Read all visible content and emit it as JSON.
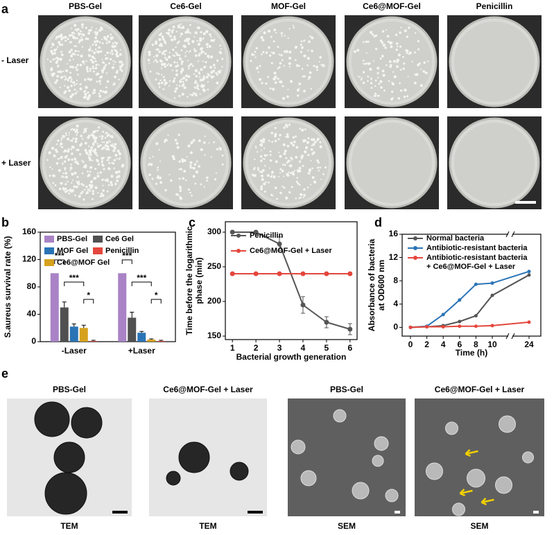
{
  "panel_labels": [
    "a",
    "b",
    "c",
    "d",
    "e"
  ],
  "plates": {
    "columns": [
      "PBS-Gel",
      "Ce6-Gel",
      "MOF-Gel",
      "Ce6@MOF-Gel",
      "Penicillin"
    ],
    "rows": [
      "- Laser",
      "+ Laser"
    ]
  },
  "chart_data": [
    {
      "type": "bar",
      "y_label": "S.aureus survival rate (%)",
      "categories": [
        "-Laser",
        "+Laser"
      ],
      "series": [
        {
          "name": "PBS-Gel",
          "color": "#a983c6",
          "values": [
            100,
            100
          ]
        },
        {
          "name": "Ce6 Gel",
          "color": "#505050",
          "values": [
            50,
            35
          ],
          "errors": [
            8,
            8
          ]
        },
        {
          "name": "MOF Gel",
          "color": "#2a74b6",
          "values": [
            22,
            13
          ],
          "errors": [
            4,
            2
          ]
        },
        {
          "name": "Ce6@MOF Gel",
          "color": "#d6a21e",
          "values": [
            20,
            3
          ],
          "errors": [
            4,
            1
          ]
        },
        {
          "name": "Penicillin",
          "color": "#e4463c",
          "values": [
            1,
            1
          ],
          "errors": [
            1,
            1
          ]
        }
      ],
      "ylim": [
        0,
        160
      ],
      "yticks": [
        0,
        40,
        80,
        120,
        160
      ],
      "significance": [
        "***",
        "***",
        "*",
        "***",
        "***",
        "*"
      ]
    },
    {
      "type": "line",
      "y_label": "Time before the logarithmic phase (min)",
      "x_label": "Bacterial growth generation",
      "x": [
        1,
        2,
        3,
        4,
        5,
        6
      ],
      "series": [
        {
          "name": "Penicillin",
          "color": "#555555",
          "values": [
            300,
            300,
            283,
            195,
            170,
            160
          ],
          "errors": [
            0,
            0,
            10,
            12,
            8,
            8
          ]
        },
        {
          "name": "Ce6@MOF-Gel + Laser",
          "color": "#e4463c",
          "values": [
            240,
            240,
            240,
            240,
            240,
            240
          ]
        }
      ],
      "xlim": [
        0.7,
        6.3
      ],
      "xticks": [
        1,
        2,
        3,
        4,
        5,
        6
      ],
      "ylim": [
        145,
        315
      ],
      "yticks": [
        150,
        200,
        250,
        300
      ]
    },
    {
      "type": "line",
      "y_label": "Absorbance of bacteria at OD600 nm",
      "x_label": "Time (h)",
      "axis_break": true,
      "x": [
        0,
        2,
        4,
        6,
        8,
        10,
        24
      ],
      "series": [
        {
          "name": "Normal bacteria",
          "color": "#555555",
          "values": [
            0,
            0.1,
            0.3,
            1,
            2,
            5.5,
            9
          ]
        },
        {
          "name": "Antibiotic-resistant bacteria",
          "color": "#2a74b6",
          "values": [
            0,
            0.2,
            2.2,
            4.7,
            7.4,
            7.6,
            9.6
          ]
        },
        {
          "name": "Antibiotic-resistant bacteria + Ce6@MOF-Gel + Laser",
          "color": "#e4463c",
          "values": [
            0,
            0.1,
            0.1,
            0.2,
            0.2,
            0.3,
            0.9
          ]
        }
      ],
      "xlim": [
        -1,
        24
      ],
      "xticks": [
        0,
        2,
        4,
        6,
        8,
        10,
        24
      ],
      "ylim": [
        -1.5,
        16
      ],
      "yticks": [
        0,
        4,
        8,
        12,
        16
      ]
    }
  ],
  "micrographs": [
    {
      "title": "PBS-Gel",
      "caption": "TEM"
    },
    {
      "title": "Ce6@MOF-Gel + Laser",
      "caption": "TEM"
    },
    {
      "title": "PBS-Gel",
      "caption": "SEM"
    },
    {
      "title": "Ce6@MOF-Gel + Laser",
      "caption": "SEM"
    }
  ]
}
